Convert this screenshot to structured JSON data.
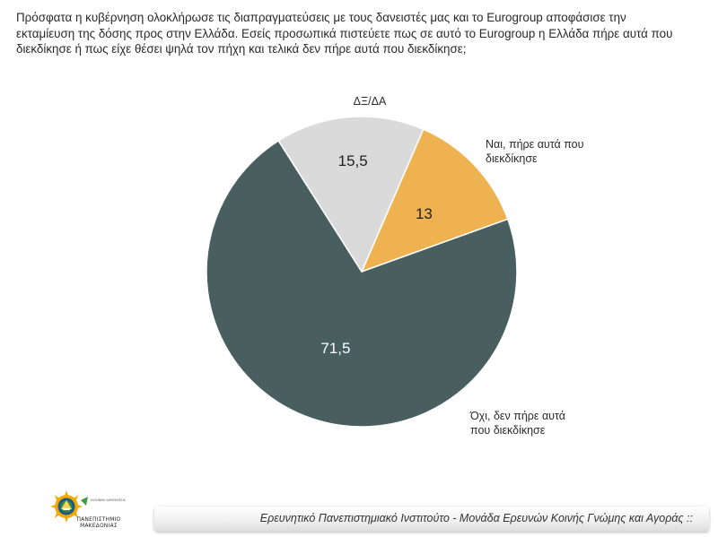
{
  "question": {
    "lines": [
      "Πρόσφατα η κυβέρνηση ολοκλήρωσε τις διαπραγματεύσεις με τους δανειστές μας και το Eurogroup αποφάσισε την",
      "εκταμίευση της δόσης προς στην Ελλάδα. Εσείς προσωπικά πιστεύετε πως σε αυτό το Eurogroup η Ελλάδα πήρε αυτά που",
      "διεκδίκησε ή πως είχε θέσει ψηλά τον πήχη και τελικά δεν πήρε αυτά που διεκδίκησε;"
    ]
  },
  "chart_data": {
    "type": "pie",
    "start_angle_deg": 23.4,
    "direction": "clockwise",
    "slices": [
      {
        "label": "Ναι, πήρε αυτά που διεκδίκησε",
        "value": 13,
        "display": "13",
        "color": "#efb251",
        "text_color": "#222222"
      },
      {
        "label": "Όχι, δεν πήρε αυτά που διεκδίκησε",
        "value": 71.5,
        "display": "71,5",
        "color": "#495e5e",
        "text_color": "#ffffff"
      },
      {
        "label": "ΔΞ/ΔΑ",
        "value": 15.5,
        "display": "15,5",
        "color": "#dadada",
        "text_color": "#222222"
      }
    ],
    "category_labels": [
      {
        "lines": [
          "Ναι, πήρε αυτά που",
          "διεκδίκησε"
        ]
      },
      {
        "lines": [
          "Όχι, δεν πήρε αυτά",
          "που διεκδίκησε"
        ]
      },
      {
        "lines": [
          "ΔΞ/ΔΑ"
        ]
      }
    ]
  },
  "footer": {
    "text": "Ερευνητικό Πανεπιστημιακό Ινστιτούτο - Μονάδα Ερευνών Κοινής Γνώμης και Αγοράς ::"
  },
  "logo": {
    "caption_line1": "ΠΑΝΕΠΙΣΤΗΜΙΟ",
    "caption_line2": "ΜΑΚΕΔΟΝΙΑΣ",
    "small_text": "ΕΛΛΗΝΙΚΗ ΔΗΜΟΚΡΑΤΙΑ"
  }
}
